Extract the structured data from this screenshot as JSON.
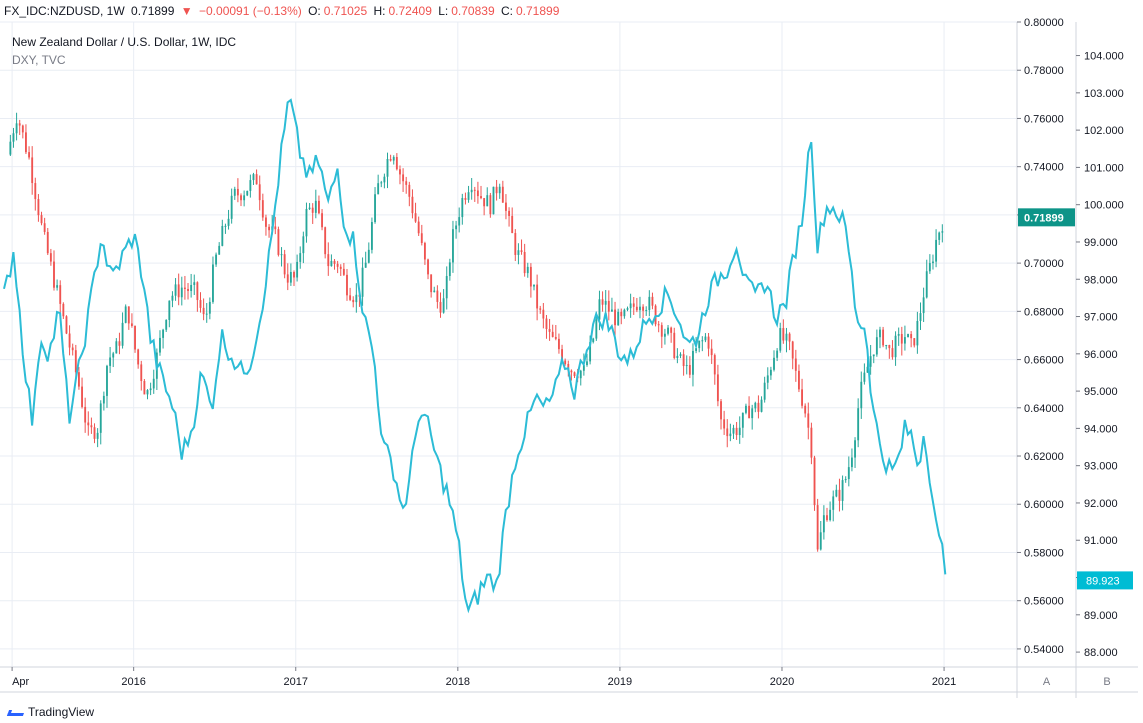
{
  "header": {
    "symbol": "FX_IDC:NZDUSD, 1W",
    "last": "0.71899",
    "arrow": "▼",
    "change": "−0.00091 (−0.13%)",
    "o_label": "O:",
    "o_value": "0.71025",
    "h_label": "H:",
    "h_value": "0.72409",
    "l_label": "L:",
    "l_value": "0.70839",
    "c_label": "C:",
    "c_value": "0.71899"
  },
  "footer": {
    "brand": "TradingView"
  },
  "colors": {
    "up": "#26a69a",
    "down": "#ef5350",
    "line": "#2cbcd6",
    "grid": "#e9edf4"
  },
  "chart_data": {
    "type": "candlestick+line",
    "title": "New Zealand Dollar / U.S. Dollar, 1W, IDC",
    "subtitle": "DXY, TVC",
    "x_ticks": [
      "Apr",
      "2016",
      "2017",
      "2018",
      "2019",
      "2020",
      "2021"
    ],
    "x_tick_years": [
      2015.25,
      2016.0,
      2017.0,
      2018.0,
      2019.0,
      2020.0,
      2021.0
    ],
    "x_range": [
      2015.2,
      2021.45
    ],
    "axis_A": {
      "name": "NZDUSD",
      "range": [
        0.5325,
        0.8
      ],
      "ticks": [
        "0.80000",
        "0.78000",
        "0.76000",
        "0.74000",
        "0.72000",
        "0.70000",
        "0.68000",
        "0.66000",
        "0.64000",
        "0.62000",
        "0.60000",
        "0.58000",
        "0.56000",
        "0.54000"
      ],
      "last_value": "0.71899",
      "footer_label": "A"
    },
    "axis_B": {
      "name": "DXY",
      "range": [
        87.6,
        104.9
      ],
      "ticks": [
        "104.000",
        "103.000",
        "102.000",
        "101.000",
        "100.000",
        "99.000",
        "98.000",
        "97.000",
        "96.000",
        "95.000",
        "94.000",
        "93.000",
        "92.000",
        "91.000",
        "90.000",
        "89.000",
        "88.000"
      ],
      "last_value": "89.923",
      "footer_label": "B"
    },
    "nzdusd_close_keypoints": [
      [
        2015.22,
        0.745
      ],
      [
        2015.28,
        0.762
      ],
      [
        2015.36,
        0.742
      ],
      [
        2015.44,
        0.712
      ],
      [
        2015.52,
        0.69
      ],
      [
        2015.6,
        0.667
      ],
      [
        2015.66,
        0.65
      ],
      [
        2015.72,
        0.629
      ],
      [
        2015.78,
        0.632
      ],
      [
        2015.84,
        0.66
      ],
      [
        2015.9,
        0.665
      ],
      [
        2015.96,
        0.682
      ],
      [
        2016.02,
        0.66
      ],
      [
        2016.08,
        0.645
      ],
      [
        2016.14,
        0.66
      ],
      [
        2016.22,
        0.686
      ],
      [
        2016.3,
        0.69
      ],
      [
        2016.38,
        0.688
      ],
      [
        2016.44,
        0.675
      ],
      [
        2016.5,
        0.7
      ],
      [
        2016.56,
        0.715
      ],
      [
        2016.62,
        0.728
      ],
      [
        2016.68,
        0.73
      ],
      [
        2016.76,
        0.735
      ],
      [
        2016.82,
        0.715
      ],
      [
        2016.88,
        0.71
      ],
      [
        2016.94,
        0.695
      ],
      [
        2017.0,
        0.693
      ],
      [
        2017.06,
        0.72
      ],
      [
        2017.12,
        0.725
      ],
      [
        2017.2,
        0.7
      ],
      [
        2017.26,
        0.7
      ],
      [
        2017.32,
        0.69
      ],
      [
        2017.38,
        0.685
      ],
      [
        2017.44,
        0.702
      ],
      [
        2017.5,
        0.73
      ],
      [
        2017.56,
        0.742
      ],
      [
        2017.6,
        0.748
      ],
      [
        2017.64,
        0.738
      ],
      [
        2017.7,
        0.728
      ],
      [
        2017.76,
        0.712
      ],
      [
        2017.82,
        0.692
      ],
      [
        2017.88,
        0.683
      ],
      [
        2017.92,
        0.684
      ],
      [
        2017.96,
        0.708
      ],
      [
        2018.02,
        0.725
      ],
      [
        2018.08,
        0.735
      ],
      [
        2018.14,
        0.728
      ],
      [
        2018.2,
        0.724
      ],
      [
        2018.26,
        0.735
      ],
      [
        2018.3,
        0.72
      ],
      [
        2018.36,
        0.705
      ],
      [
        2018.44,
        0.695
      ],
      [
        2018.5,
        0.68
      ],
      [
        2018.56,
        0.67
      ],
      [
        2018.62,
        0.665
      ],
      [
        2018.7,
        0.656
      ],
      [
        2018.78,
        0.655
      ],
      [
        2018.84,
        0.67
      ],
      [
        2018.88,
        0.685
      ],
      [
        2018.94,
        0.68
      ],
      [
        2019.0,
        0.675
      ],
      [
        2019.06,
        0.68
      ],
      [
        2019.12,
        0.685
      ],
      [
        2019.18,
        0.683
      ],
      [
        2019.24,
        0.675
      ],
      [
        2019.3,
        0.67
      ],
      [
        2019.36,
        0.66
      ],
      [
        2019.42,
        0.655
      ],
      [
        2019.48,
        0.665
      ],
      [
        2019.54,
        0.67
      ],
      [
        2019.58,
        0.655
      ],
      [
        2019.62,
        0.635
      ],
      [
        2019.68,
        0.63
      ],
      [
        2019.74,
        0.632
      ],
      [
        2019.8,
        0.64
      ],
      [
        2019.86,
        0.64
      ],
      [
        2019.92,
        0.655
      ],
      [
        2019.98,
        0.67
      ],
      [
        2020.04,
        0.666
      ],
      [
        2020.1,
        0.65
      ],
      [
        2020.14,
        0.64
      ],
      [
        2020.18,
        0.625
      ],
      [
        2020.22,
        0.58
      ],
      [
        2020.26,
        0.595
      ],
      [
        2020.3,
        0.6
      ],
      [
        2020.36,
        0.605
      ],
      [
        2020.4,
        0.612
      ],
      [
        2020.44,
        0.625
      ],
      [
        2020.48,
        0.645
      ],
      [
        2020.52,
        0.655
      ],
      [
        2020.56,
        0.665
      ],
      [
        2020.62,
        0.67
      ],
      [
        2020.66,
        0.663
      ],
      [
        2020.7,
        0.666
      ],
      [
        2020.76,
        0.67
      ],
      [
        2020.8,
        0.665
      ],
      [
        2020.84,
        0.675
      ],
      [
        2020.88,
        0.69
      ],
      [
        2020.92,
        0.7
      ],
      [
        2020.96,
        0.712
      ],
      [
        2021.0,
        0.719
      ]
    ],
    "dxy_keypoints": [
      [
        2015.2,
        97.5
      ],
      [
        2015.26,
        98.8
      ],
      [
        2015.32,
        96.0
      ],
      [
        2015.38,
        94.0
      ],
      [
        2015.42,
        96.5
      ],
      [
        2015.48,
        96.0
      ],
      [
        2015.54,
        97.2
      ],
      [
        2015.6,
        94.3
      ],
      [
        2015.64,
        95.0
      ],
      [
        2015.72,
        97.0
      ],
      [
        2015.8,
        99.2
      ],
      [
        2015.86,
        98.0
      ],
      [
        2015.92,
        98.5
      ],
      [
        2016.0,
        99.2
      ],
      [
        2016.06,
        98.0
      ],
      [
        2016.1,
        96.5
      ],
      [
        2016.16,
        95.5
      ],
      [
        2016.24,
        94.6
      ],
      [
        2016.3,
        93.3
      ],
      [
        2016.36,
        94.0
      ],
      [
        2016.42,
        95.5
      ],
      [
        2016.48,
        94.5
      ],
      [
        2016.54,
        96.5
      ],
      [
        2016.6,
        96.0
      ],
      [
        2016.66,
        95.5
      ],
      [
        2016.72,
        95.8
      ],
      [
        2016.78,
        97.0
      ],
      [
        2016.84,
        98.7
      ],
      [
        2016.9,
        101.0
      ],
      [
        2016.96,
        102.9
      ],
      [
        2017.02,
        101.5
      ],
      [
        2017.08,
        100.7
      ],
      [
        2017.14,
        101.2
      ],
      [
        2017.2,
        100.0
      ],
      [
        2017.26,
        101.0
      ],
      [
        2017.3,
        99.5
      ],
      [
        2017.36,
        99.0
      ],
      [
        2017.42,
        97.0
      ],
      [
        2017.48,
        96.0
      ],
      [
        2017.54,
        93.5
      ],
      [
        2017.6,
        93.0
      ],
      [
        2017.66,
        91.8
      ],
      [
        2017.7,
        92.5
      ],
      [
        2017.76,
        94.5
      ],
      [
        2017.82,
        94.0
      ],
      [
        2017.88,
        93.0
      ],
      [
        2017.94,
        92.2
      ],
      [
        2018.0,
        91.0
      ],
      [
        2018.06,
        89.0
      ],
      [
        2018.12,
        89.5
      ],
      [
        2018.18,
        90.0
      ],
      [
        2018.24,
        89.8
      ],
      [
        2018.3,
        91.8
      ],
      [
        2018.36,
        93.3
      ],
      [
        2018.42,
        94.0
      ],
      [
        2018.48,
        94.8
      ],
      [
        2018.54,
        94.5
      ],
      [
        2018.6,
        95.0
      ],
      [
        2018.66,
        95.8
      ],
      [
        2018.72,
        95.0
      ],
      [
        2018.78,
        96.0
      ],
      [
        2018.84,
        96.8
      ],
      [
        2018.9,
        97.0
      ],
      [
        2018.96,
        96.5
      ],
      [
        2019.0,
        96.0
      ],
      [
        2019.06,
        95.8
      ],
      [
        2019.12,
        96.5
      ],
      [
        2019.18,
        97.0
      ],
      [
        2019.24,
        97.3
      ],
      [
        2019.3,
        97.6
      ],
      [
        2019.36,
        97.0
      ],
      [
        2019.42,
        96.2
      ],
      [
        2019.48,
        96.5
      ],
      [
        2019.54,
        97.5
      ],
      [
        2019.6,
        98.0
      ],
      [
        2019.66,
        98.3
      ],
      [
        2019.72,
        99.0
      ],
      [
        2019.78,
        97.8
      ],
      [
        2019.84,
        97.5
      ],
      [
        2019.9,
        98.0
      ],
      [
        2019.96,
        97.0
      ],
      [
        2020.02,
        97.3
      ],
      [
        2020.08,
        98.8
      ],
      [
        2020.12,
        99.5
      ],
      [
        2020.18,
        102.0
      ],
      [
        2020.22,
        98.8
      ],
      [
        2020.26,
        99.8
      ],
      [
        2020.3,
        100.0
      ],
      [
        2020.36,
        99.7
      ],
      [
        2020.4,
        99.2
      ],
      [
        2020.46,
        97.0
      ],
      [
        2020.52,
        96.6
      ],
      [
        2020.56,
        94.5
      ],
      [
        2020.62,
        93.3
      ],
      [
        2020.68,
        92.8
      ],
      [
        2020.72,
        93.2
      ],
      [
        2020.76,
        94.0
      ],
      [
        2020.8,
        93.8
      ],
      [
        2020.84,
        93.0
      ],
      [
        2020.88,
        94.0
      ],
      [
        2020.92,
        92.5
      ],
      [
        2020.96,
        91.0
      ],
      [
        2021.0,
        90.6
      ],
      [
        2021.02,
        89.9
      ]
    ]
  }
}
